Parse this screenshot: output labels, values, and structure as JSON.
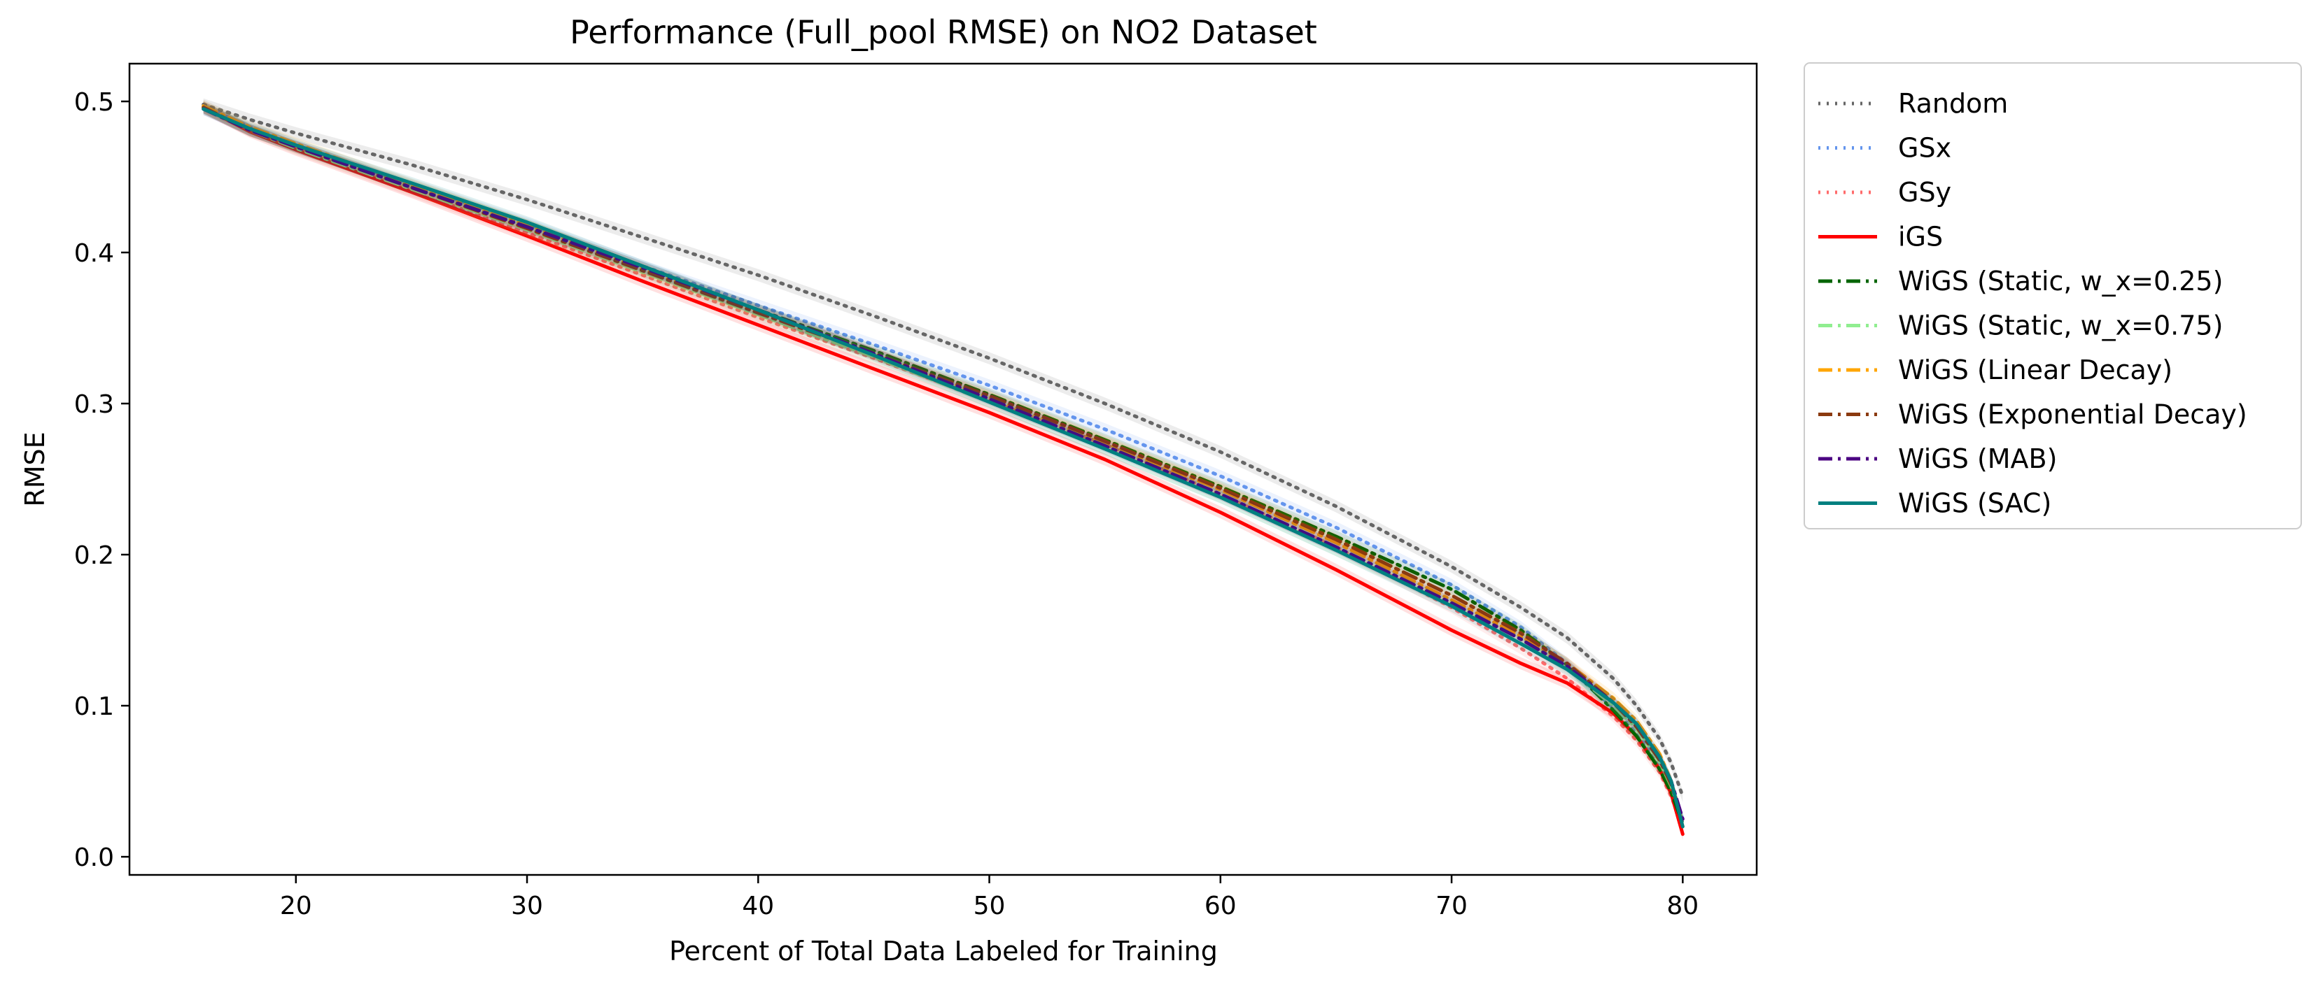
{
  "chart_data": {
    "type": "line",
    "title": "Performance (Full_pool RMSE) on NO2 Dataset",
    "xlabel": "Percent of Total Data Labeled for Training",
    "ylabel": "RMSE",
    "xlim": [
      12.8,
      83.2
    ],
    "ylim": [
      -0.012,
      0.525
    ],
    "xticks": [
      20,
      30,
      40,
      50,
      60,
      70,
      80
    ],
    "yticks": [
      0.0,
      0.1,
      0.2,
      0.3,
      0.4,
      0.5
    ],
    "xtick_labels": [
      "20",
      "30",
      "40",
      "50",
      "60",
      "70",
      "80"
    ],
    "ytick_labels": [
      "0.0",
      "0.1",
      "0.2",
      "0.3",
      "0.4",
      "0.5"
    ],
    "grid": false,
    "legend_position": "outside-right",
    "series": [
      {
        "name": "Random",
        "color": "#666666",
        "style": "dotted",
        "x": [
          16,
          18,
          20,
          25,
          30,
          35,
          40,
          45,
          50,
          55,
          60,
          65,
          70,
          73,
          75,
          77,
          78,
          79,
          79.5,
          80
        ],
        "y": [
          0.498,
          0.488,
          0.479,
          0.458,
          0.435,
          0.41,
          0.385,
          0.358,
          0.33,
          0.3,
          0.268,
          0.232,
          0.192,
          0.165,
          0.145,
          0.118,
          0.1,
          0.078,
          0.062,
          0.04
        ]
      },
      {
        "name": "GSx",
        "color": "#6495ed",
        "style": "dotted",
        "x": [
          16,
          18,
          20,
          25,
          30,
          35,
          40,
          45,
          50,
          55,
          60,
          65,
          70,
          73,
          75,
          77,
          78,
          79,
          79.5,
          80
        ],
        "y": [
          0.497,
          0.483,
          0.471,
          0.445,
          0.419,
          0.391,
          0.365,
          0.339,
          0.312,
          0.283,
          0.252,
          0.218,
          0.18,
          0.152,
          0.128,
          0.098,
          0.082,
          0.062,
          0.045,
          0.025
        ]
      },
      {
        "name": "GSy",
        "color": "#ff6b6b",
        "style": "dotted",
        "x": [
          16,
          18,
          20,
          25,
          30,
          35,
          40,
          45,
          50,
          55,
          60,
          65,
          70,
          73,
          75,
          77,
          78,
          79,
          79.5,
          80
        ],
        "y": [
          0.496,
          0.481,
          0.469,
          0.441,
          0.413,
          0.385,
          0.357,
          0.33,
          0.302,
          0.273,
          0.24,
          0.205,
          0.165,
          0.138,
          0.118,
          0.093,
          0.077,
          0.056,
          0.04,
          0.02
        ]
      },
      {
        "name": "iGS",
        "color": "#ff0000",
        "style": "solid",
        "x": [
          16,
          18,
          20,
          25,
          30,
          35,
          40,
          45,
          50,
          55,
          60,
          65,
          70,
          73,
          75,
          77,
          78,
          79,
          79.5,
          80
        ],
        "y": [
          0.496,
          0.48,
          0.468,
          0.44,
          0.411,
          0.381,
          0.352,
          0.323,
          0.294,
          0.263,
          0.228,
          0.19,
          0.15,
          0.128,
          0.115,
          0.095,
          0.08,
          0.058,
          0.042,
          0.015
        ]
      },
      {
        "name": "WiGS (Static, w_x=0.25)",
        "color": "#006400",
        "style": "dashdot",
        "x": [
          16,
          18,
          20,
          25,
          30,
          35,
          40,
          45,
          50,
          55,
          60,
          65,
          70,
          73,
          75,
          77,
          78,
          79,
          79.5,
          80
        ],
        "y": [
          0.496,
          0.481,
          0.47,
          0.444,
          0.418,
          0.39,
          0.362,
          0.335,
          0.306,
          0.276,
          0.245,
          0.212,
          0.177,
          0.15,
          0.127,
          0.097,
          0.08,
          0.058,
          0.043,
          0.022
        ]
      },
      {
        "name": "WiGS (Static, w_x=0.75)",
        "color": "#90ee90",
        "style": "dashdot",
        "x": [
          16,
          18,
          20,
          25,
          30,
          35,
          40,
          45,
          50,
          55,
          60,
          65,
          70,
          73,
          75,
          77,
          78,
          79,
          79.5,
          80
        ],
        "y": [
          0.496,
          0.481,
          0.469,
          0.442,
          0.415,
          0.387,
          0.359,
          0.331,
          0.301,
          0.27,
          0.238,
          0.203,
          0.168,
          0.145,
          0.125,
          0.1,
          0.085,
          0.063,
          0.047,
          0.025
        ]
      },
      {
        "name": "WiGS (Linear Decay)",
        "color": "#ffa500",
        "style": "dashdot",
        "x": [
          16,
          18,
          20,
          25,
          30,
          35,
          40,
          45,
          50,
          55,
          60,
          65,
          70,
          73,
          75,
          77,
          78,
          79,
          79.5,
          80
        ],
        "y": [
          0.497,
          0.483,
          0.472,
          0.445,
          0.418,
          0.389,
          0.361,
          0.333,
          0.304,
          0.274,
          0.243,
          0.208,
          0.17,
          0.146,
          0.128,
          0.105,
          0.09,
          0.068,
          0.05,
          0.022
        ]
      },
      {
        "name": "WiGS (Exponential Decay)",
        "color": "#8b3a0f",
        "style": "dashdot",
        "x": [
          16,
          18,
          20,
          25,
          30,
          35,
          40,
          45,
          50,
          55,
          60,
          65,
          70,
          73,
          75,
          77,
          78,
          79,
          79.5,
          80
        ],
        "y": [
          0.496,
          0.481,
          0.47,
          0.443,
          0.416,
          0.388,
          0.36,
          0.333,
          0.305,
          0.275,
          0.244,
          0.21,
          0.173,
          0.148,
          0.128,
          0.102,
          0.086,
          0.064,
          0.048,
          0.022
        ]
      },
      {
        "name": "WiGS (MAB)",
        "color": "#4b0082",
        "style": "dashdot",
        "x": [
          16,
          18,
          20,
          25,
          30,
          35,
          40,
          45,
          50,
          55,
          60,
          65,
          70,
          73,
          75,
          77,
          78,
          79,
          79.5,
          80
        ],
        "y": [
          0.495,
          0.481,
          0.47,
          0.443,
          0.417,
          0.39,
          0.362,
          0.333,
          0.303,
          0.272,
          0.24,
          0.205,
          0.168,
          0.144,
          0.126,
          0.102,
          0.088,
          0.066,
          0.05,
          0.025
        ]
      },
      {
        "name": "WiGS (SAC)",
        "color": "#008080",
        "style": "solid",
        "x": [
          16,
          18,
          20,
          25,
          30,
          35,
          40,
          45,
          50,
          55,
          60,
          65,
          70,
          73,
          75,
          77,
          78,
          79,
          79.5,
          80
        ],
        "y": [
          0.495,
          0.482,
          0.471,
          0.446,
          0.42,
          0.391,
          0.362,
          0.332,
          0.301,
          0.27,
          0.238,
          0.203,
          0.166,
          0.141,
          0.124,
          0.102,
          0.088,
          0.066,
          0.05,
          0.02
        ]
      }
    ]
  }
}
